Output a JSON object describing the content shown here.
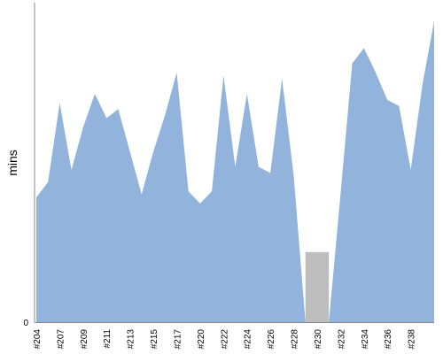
{
  "chart_data": {
    "type": "area",
    "ylabel": "mins",
    "xlabel": "",
    "ylim": [
      0,
      100
    ],
    "y_tick_labels": [
      "0"
    ],
    "x_tick_labels": [
      "#204",
      "#207",
      "#209",
      "#211",
      "#213",
      "#215",
      "#217",
      "#220",
      "#222",
      "#224",
      "#226",
      "#228",
      "#230",
      "#232",
      "#234",
      "#236",
      "#238"
    ],
    "x_tick_indices": [
      0,
      2,
      4,
      6,
      8,
      10,
      12,
      14,
      16,
      18,
      20,
      22,
      24,
      26,
      28,
      30,
      32
    ],
    "values": [
      41,
      46,
      72,
      50,
      64,
      75,
      67,
      70,
      56,
      42,
      56,
      68,
      82,
      43,
      39,
      43,
      81,
      51,
      75,
      51,
      49,
      80,
      48,
      0,
      null,
      0,
      42,
      85,
      90,
      82,
      73,
      71,
      50,
      78,
      99
    ],
    "colors": {
      "area": "#92b3dc",
      "gap": "#bdbdbd",
      "axis": "#888888"
    }
  }
}
